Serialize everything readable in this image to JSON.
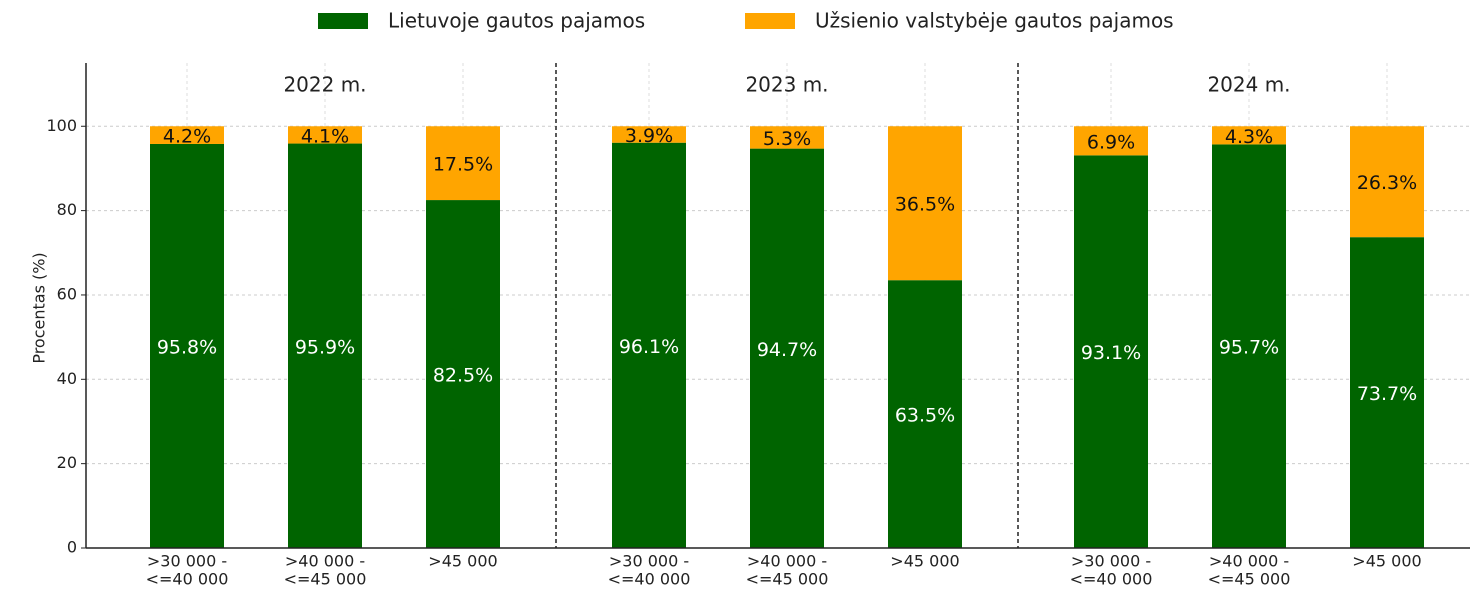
{
  "chart_data": {
    "type": "stacked_bar",
    "ylabel": "Procentas (%)",
    "groups": [
      "2022 m.",
      "2023 m.",
      "2024 m."
    ],
    "categories": [
      [
        ">30 000 -",
        "<=40 000"
      ],
      [
        ">40 000 -",
        "<=45 000"
      ],
      [
        ">45 000"
      ],
      [
        ">30 000 -",
        "<=40 000"
      ],
      [
        ">40 000 -",
        "<=45 000"
      ],
      [
        ">45 000"
      ],
      [
        ">30 000 -",
        "<=40 000"
      ],
      [
        ">40 000 -",
        "<=45 000"
      ],
      [
        ">45 000"
      ]
    ],
    "series": [
      {
        "name": "Lietuvoje gautos pajamos",
        "color": "#006400",
        "values": [
          95.8,
          95.9,
          82.5,
          96.1,
          94.7,
          63.5,
          93.1,
          95.7,
          73.7
        ],
        "value_labels": [
          "95.8%",
          "95.9%",
          "82.5%",
          "96.1%",
          "94.7%",
          "63.5%",
          "93.1%",
          "95.7%",
          "73.7%"
        ]
      },
      {
        "name": "Užsienio valstybėje gautos pajamos",
        "color": "#FFA500",
        "values": [
          4.2,
          4.1,
          17.5,
          3.9,
          5.3,
          36.5,
          6.9,
          4.3,
          26.3
        ],
        "value_labels": [
          "4.2%",
          "4.1%",
          "17.5%",
          "3.9%",
          "5.3%",
          "36.5%",
          "6.9%",
          "4.3%",
          "26.3%"
        ]
      }
    ],
    "ylim": [
      0,
      115
    ],
    "yticks": [
      0,
      20,
      40,
      60,
      80,
      100
    ],
    "grid": true
  }
}
